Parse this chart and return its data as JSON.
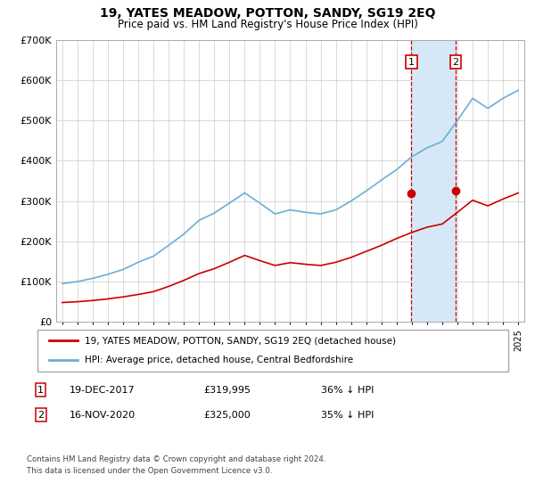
{
  "title": "19, YATES MEADOW, POTTON, SANDY, SG19 2EQ",
  "subtitle": "Price paid vs. HM Land Registry's House Price Index (HPI)",
  "legend_line1": "19, YATES MEADOW, POTTON, SANDY, SG19 2EQ (detached house)",
  "legend_line2": "HPI: Average price, detached house, Central Bedfordshire",
  "footnote1": "Contains HM Land Registry data © Crown copyright and database right 2024.",
  "footnote2": "This data is licensed under the Open Government Licence v3.0.",
  "sale1_date": "19-DEC-2017",
  "sale1_price": 319995,
  "sale1_label": "36% ↓ HPI",
  "sale2_date": "16-NOV-2020",
  "sale2_price": 325000,
  "sale2_label": "35% ↓ HPI",
  "sale1_year": 2017.97,
  "sale2_year": 2020.88,
  "hpi_color": "#6baed6",
  "price_color": "#cc0000",
  "shade_color": "#d6e8f7",
  "bg_color": "#f0f4f8",
  "ylim": [
    0,
    700000
  ],
  "yticks": [
    0,
    100000,
    200000,
    300000,
    400000,
    500000,
    600000,
    700000
  ],
  "ytick_labels": [
    "£0",
    "£100K",
    "£200K",
    "£300K",
    "£400K",
    "£500K",
    "£600K",
    "£700K"
  ],
  "hpi_years": [
    1995,
    1996,
    1997,
    1998,
    1999,
    2000,
    2001,
    2002,
    2003,
    2004,
    2005,
    2006,
    2007,
    2008,
    2009,
    2010,
    2011,
    2012,
    2013,
    2014,
    2015,
    2016,
    2017,
    2018,
    2019,
    2020,
    2021,
    2022,
    2023,
    2024,
    2025
  ],
  "hpi_values": [
    95000,
    100000,
    108000,
    118000,
    130000,
    148000,
    163000,
    190000,
    218000,
    252000,
    270000,
    295000,
    320000,
    295000,
    268000,
    278000,
    272000,
    268000,
    278000,
    300000,
    325000,
    352000,
    378000,
    410000,
    432000,
    448000,
    500000,
    555000,
    530000,
    555000,
    575000
  ],
  "price_years": [
    1995,
    1996,
    1997,
    1998,
    1999,
    2000,
    2001,
    2002,
    2003,
    2004,
    2005,
    2006,
    2007,
    2008,
    2009,
    2010,
    2011,
    2012,
    2013,
    2014,
    2015,
    2016,
    2017,
    2018,
    2019,
    2020,
    2021,
    2022,
    2023,
    2024,
    2025
  ],
  "price_values": [
    48000,
    50000,
    53000,
    57000,
    62000,
    68000,
    75000,
    88000,
    103000,
    120000,
    132000,
    148000,
    165000,
    152000,
    140000,
    147000,
    143000,
    140000,
    148000,
    160000,
    175000,
    190000,
    207000,
    222000,
    235000,
    243000,
    272000,
    302000,
    288000,
    305000,
    320000
  ]
}
